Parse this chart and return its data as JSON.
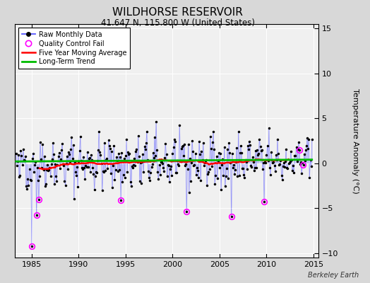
{
  "title": "WILDHORSE RESERVOIR",
  "subtitle": "41.647 N, 115.800 W (United States)",
  "ylabel": "Temperature Anomaly (°C)",
  "credit": "Berkeley Earth",
  "xlim": [
    1983.2,
    2015.5
  ],
  "ylim": [
    -10.5,
    15.5
  ],
  "yticks": [
    -10,
    -5,
    0,
    5,
    10,
    15
  ],
  "xticks": [
    1985,
    1990,
    1995,
    2000,
    2005,
    2010,
    2015
  ],
  "plot_bg_color": "#f0f0f0",
  "fig_bg_color": "#d8d8d8",
  "raw_color": "#5555ff",
  "ma_color": "#ff0000",
  "trend_color": "#00bb00",
  "qc_color": "#ff00ff",
  "dot_color": "#000000",
  "seed": 42,
  "n_months": 379,
  "start_year": 1983.333,
  "trend_val": 0.25,
  "qc_fail_times": [
    1985.0,
    1985.5,
    1985.75,
    1994.5,
    2001.5,
    2006.25,
    2009.75,
    2013.5,
    2013.9
  ],
  "qc_fail_values": [
    -9.2,
    -5.8,
    -4.0,
    -4.1,
    -5.4,
    -5.9,
    -4.3,
    1.5,
    -0.2
  ]
}
